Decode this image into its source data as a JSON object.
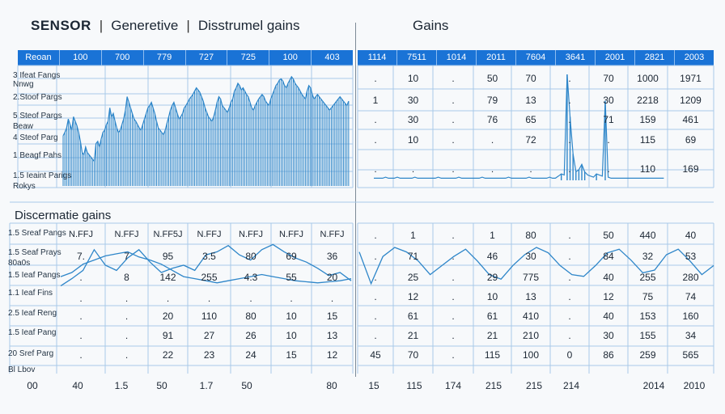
{
  "header": {
    "brand": "SENSOR",
    "tab_generative": "Generetive",
    "tab_distributed": "Disstrumel gains",
    "right_title": "Gains",
    "separator": "|"
  },
  "section2_title": "Discermatie gains",
  "colors": {
    "accent": "#1a73d6",
    "line": "#2e86c9",
    "grid": "#a9c9e8"
  },
  "top_left_header": [
    "Reoan",
    "100",
    "700",
    "779",
    "727",
    "725",
    "100",
    "403"
  ],
  "top_right_header": [
    "1114",
    "7511",
    "1014",
    "2011",
    "7604",
    "3641",
    "2001",
    "2821",
    "2003"
  ],
  "top_left_rows": [
    "3 Ifeat Fangs",
    "Nnwg",
    "2.Stoof Pargs",
    "5 Steof Pargs",
    "Beaw",
    "4 Steof Parg",
    "1 Beagf Pahs",
    "1.5 Ieaint Parigs",
    "Rokys"
  ],
  "top_right_cells": [
    [
      ".",
      "10",
      ".",
      "50",
      "70",
      ".",
      "70",
      "1000",
      "1971"
    ],
    [
      "1",
      "30",
      ".",
      "79",
      "13",
      ".",
      "30",
      "2218",
      "1209"
    ],
    [
      ".",
      "30",
      ".",
      "76",
      "65",
      ".",
      "71",
      "159",
      "461"
    ],
    [
      ".",
      "10",
      ".",
      ".",
      "72",
      ".",
      ".",
      "115",
      "69"
    ],
    [
      ".",
      ".",
      ".",
      ".",
      ".",
      ".",
      ".",
      "110",
      "169"
    ]
  ],
  "bottom_left_rows": [
    "1.5 Sreaf Pangs",
    "1.5 Seaf Prays",
    "80a0s",
    "1.5 Ieaf Pangs",
    "1.1 Ieaf Fins",
    "2.5 Ieaf Reng",
    "1.5 Ieaf Pang",
    "20 Sref Parg",
    "Bl Lbov"
  ],
  "bottom_left_header": [
    "N.FFJ",
    "N.FFJ",
    "N.FF5J",
    "N.FFJ",
    "N.FFJ",
    "N.FFJ",
    "N.FFJ"
  ],
  "bottom_left_cells": [
    [
      "7.",
      "7",
      "95",
      "3.5",
      "80",
      "69",
      "36"
    ],
    [
      ".",
      "8",
      "142",
      "255",
      "4.3",
      "55",
      "20"
    ],
    [
      ".",
      ".",
      ".",
      ".",
      ".",
      ".",
      "."
    ],
    [
      ".",
      ".",
      "20",
      "110",
      "80",
      "10",
      "15"
    ],
    [
      ".",
      ".",
      "91",
      "27",
      "26",
      "10",
      "13"
    ],
    [
      ".",
      ".",
      "22",
      "23",
      "24",
      "15",
      "12"
    ]
  ],
  "bottom_right_cells": [
    [
      ".",
      "1",
      ".",
      "1",
      "80",
      ".",
      "50",
      "440",
      "40"
    ],
    [
      ".",
      "71",
      ".",
      "46",
      "30",
      ".",
      "84",
      "32",
      "53"
    ],
    [
      ".",
      "25",
      ".",
      "29",
      "775",
      ".",
      "40",
      "255",
      "280"
    ],
    [
      ".",
      "12",
      ".",
      "10",
      "13",
      ".",
      "12",
      "75",
      "74"
    ],
    [
      ".",
      "61",
      ".",
      "61",
      "410",
      ".",
      "40",
      "153",
      "160"
    ],
    [
      ".",
      "21",
      ".",
      "21",
      "210",
      ".",
      "30",
      "155",
      "34"
    ],
    [
      "45",
      "70",
      ".",
      "115",
      "100",
      "0",
      "86",
      "259",
      "565"
    ]
  ],
  "footer_left": [
    "00",
    "40",
    "1.5",
    "50",
    "1.7",
    "50",
    "80"
  ],
  "footer_right": [
    "15",
    "115",
    "174",
    "215",
    "215",
    "214",
    "2014",
    "2010"
  ],
  "chart_data": [
    {
      "type": "bar",
      "title": "",
      "values": [
        45,
        48,
        52,
        60,
        55,
        50,
        62,
        58,
        54,
        48,
        40,
        30,
        28,
        35,
        30,
        28,
        26,
        24,
        22,
        38,
        40,
        35,
        42,
        48,
        50,
        55,
        58,
        70,
        62,
        65,
        58,
        52,
        48,
        50,
        55,
        60,
        68,
        80,
        75,
        70,
        65,
        60,
        58,
        55,
        52,
        50,
        55,
        60,
        65,
        70,
        72,
        75,
        70,
        65,
        58,
        52,
        50,
        48,
        46,
        50,
        56,
        62,
        68,
        72,
        75,
        70,
        65,
        60,
        62,
        65,
        70,
        72,
        75,
        78,
        80,
        82,
        85,
        88,
        86,
        84,
        80,
        76,
        70,
        66,
        62,
        60,
        58,
        62,
        68,
        75,
        80,
        78,
        72,
        70,
        68,
        66,
        70,
        75,
        78,
        85,
        88,
        92,
        90,
        86,
        88,
        85,
        82,
        80,
        75,
        70,
        68,
        72,
        75,
        78,
        80,
        82,
        80,
        76,
        74,
        72,
        78,
        82,
        86,
        90,
        92,
        95,
        96,
        94,
        90,
        88,
        92,
        95,
        98,
        96,
        92,
        90,
        88,
        85,
        82,
        80,
        78,
        85,
        90,
        88,
        82,
        78,
        80,
        82,
        80,
        78,
        76,
        74,
        72,
        70,
        68,
        70,
        72,
        74,
        76,
        78,
        80,
        78,
        76,
        74,
        72,
        76
      ],
      "ylim": [
        0,
        100
      ]
    },
    {
      "type": "bar",
      "title": "",
      "values": [
        2,
        2,
        2,
        2,
        3,
        2,
        2,
        2,
        3,
        2,
        2,
        2,
        2,
        2,
        3,
        2,
        2,
        2,
        2,
        2,
        2,
        2,
        3,
        2,
        2,
        2,
        2,
        2,
        2,
        3,
        2,
        2,
        2,
        2,
        2,
        2,
        2,
        3,
        2,
        2,
        2,
        2,
        2,
        2,
        2,
        2,
        3,
        2,
        2,
        2,
        2,
        2,
        2,
        3,
        2,
        2,
        2,
        2,
        2,
        2,
        3,
        2,
        2,
        4,
        6,
        5,
        100,
        60,
        25,
        8,
        10,
        15,
        8,
        5,
        4,
        3,
        6,
        5,
        4,
        75,
        3,
        2,
        2,
        2,
        2,
        2,
        2,
        2,
        2,
        2,
        2,
        2,
        2,
        2,
        2,
        2,
        2,
        2,
        2,
        2
      ],
      "ylim": [
        0,
        100
      ]
    },
    {
      "type": "line",
      "title": "",
      "series": [
        {
          "values": [
            5,
            12,
            20,
            40,
            25,
            20,
            32,
            40,
            28,
            18,
            22,
            25,
            20,
            35,
            38,
            44,
            35,
            30,
            40,
            45,
            38,
            32,
            28,
            22,
            15,
            18,
            10
          ]
        },
        {
          "values": [
            14,
            18,
            26,
            30,
            34,
            36,
            38,
            33,
            30,
            26,
            20,
            14,
            12,
            10,
            8,
            10,
            12,
            14,
            16,
            14,
            12,
            10,
            9,
            8,
            9,
            10,
            12
          ]
        }
      ],
      "ylim": [
        0,
        50
      ]
    },
    {
      "type": "line",
      "title": "",
      "series": [
        {
          "values": [
            45,
            10,
            40,
            50,
            45,
            35,
            20,
            30,
            40,
            48,
            35,
            20,
            15,
            30,
            42,
            50,
            44,
            30,
            20,
            18,
            30,
            44,
            48,
            36,
            22,
            25,
            42,
            48,
            35,
            20,
            30
          ]
        }
      ],
      "ylim": [
        0,
        50
      ]
    }
  ]
}
